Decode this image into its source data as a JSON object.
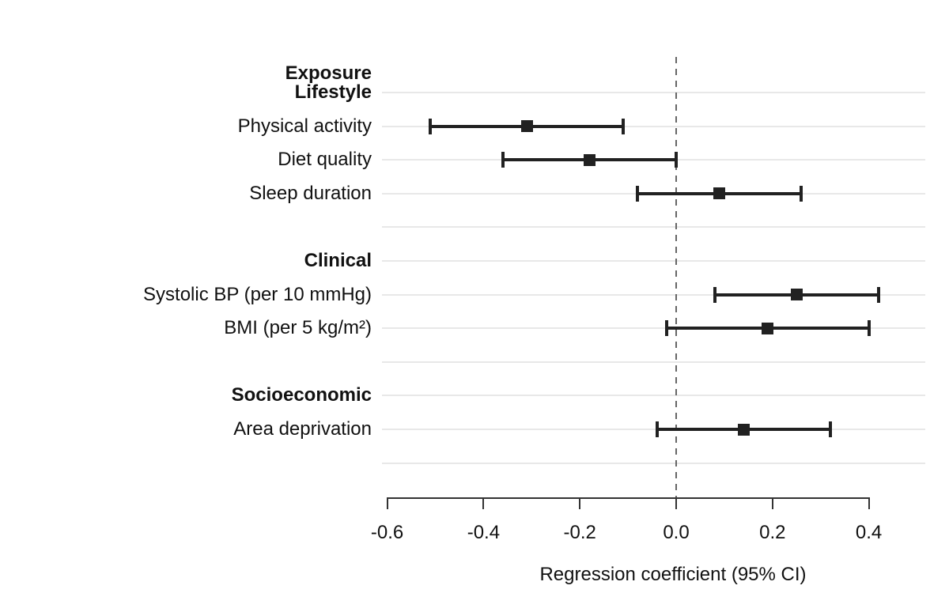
{
  "chart_data": {
    "type": "forest",
    "xlabel": "Regression coefficient (95% CI)",
    "column_header": "Exposure",
    "x_ticks": [
      -0.6,
      -0.4,
      -0.2,
      0.0,
      0.2,
      0.4
    ],
    "x_tick_labels": [
      "-0.6",
      "-0.4",
      "-0.2",
      "0.0",
      "0.2",
      "0.4"
    ],
    "xlim": [
      -0.61,
      0.52
    ],
    "zero_line_x": 0.0,
    "legend": "none",
    "grid": "horizontal-row-lines",
    "groups": [
      {
        "label": "Lifestyle",
        "items": [
          {
            "label": "Physical activity",
            "estimate": -0.31,
            "ci_low": -0.51,
            "ci_high": -0.11
          },
          {
            "label": "Diet quality",
            "estimate": -0.18,
            "ci_low": -0.36,
            "ci_high": 0.0
          },
          {
            "label": "Sleep duration",
            "estimate": 0.09,
            "ci_low": -0.08,
            "ci_high": 0.26
          }
        ]
      },
      {
        "label": "Clinical",
        "items": [
          {
            "label": "Systolic BP (per 10 mmHg)",
            "estimate": 0.25,
            "ci_low": 0.08,
            "ci_high": 0.42
          },
          {
            "label": "BMI (per 5 kg/m²)",
            "estimate": 0.19,
            "ci_low": -0.02,
            "ci_high": 0.4
          }
        ]
      },
      {
        "label": "Socioeconomic",
        "items": [
          {
            "label": "Area deprivation",
            "estimate": 0.14,
            "ci_low": -0.04,
            "ci_high": 0.32
          }
        ]
      }
    ],
    "colors": {
      "marker": "#212121",
      "ci": "#212121",
      "gridline": "#e8e8e8",
      "zero_line": "#666666",
      "axis": "#333333",
      "text": "#111111",
      "background": "#ffffff"
    }
  }
}
